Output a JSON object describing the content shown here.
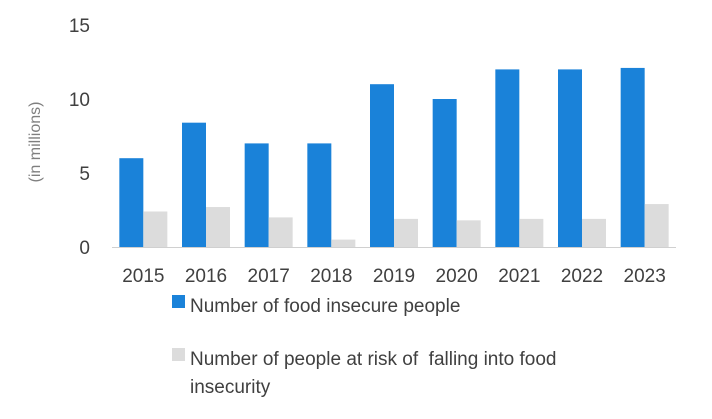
{
  "chart_data": {
    "type": "bar",
    "title": "",
    "xlabel": "",
    "ylabel": "(in millions)",
    "categories": [
      "2015",
      "2016",
      "2017",
      "2018",
      "2019",
      "2020",
      "2021",
      "2022",
      "2023"
    ],
    "series": [
      {
        "name": "Number of food insecure people",
        "color": "#1a82d9",
        "values": [
          6.0,
          8.4,
          7.0,
          7.0,
          11.0,
          10.0,
          12.0,
          12.0,
          12.1
        ]
      },
      {
        "name": "Number of people at risk of  falling into food insecurity",
        "color": "#dcdcdc",
        "values": [
          2.4,
          2.7,
          2.0,
          0.5,
          1.9,
          1.8,
          1.9,
          1.9,
          2.9
        ]
      }
    ],
    "ylim": [
      0,
      15
    ],
    "yticks": [
      0,
      5,
      10,
      15
    ],
    "grid": false,
    "legend_position": "bottom",
    "legend_lines": [
      [
        "Number of food insecure people"
      ],
      [
        "Number of people at risk of  falling into food",
        "insecurity"
      ]
    ]
  }
}
